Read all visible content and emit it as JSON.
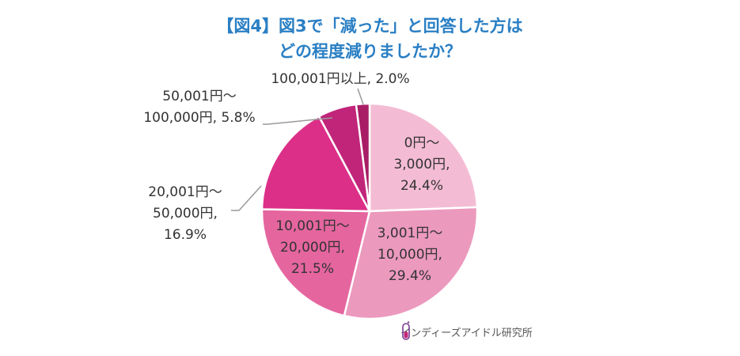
{
  "title_line1": "【図4】図3で「減った」と回答した方は",
  "title_line2": "どの程度減りましたか？",
  "brand": {
    "name": "インディーズアイドル研究所",
    "icon": "test-tube-icon"
  },
  "chart_data": {
    "type": "pie",
    "title": "【図4】図3で「減った」と回答した方は どの程度減りましたか？",
    "labels": [
      "0円～3,000円",
      "3,001円～10,000円",
      "10,001円～20,000円",
      "20,001円～50,000円",
      "50,001円～100,000円",
      "100,001円以上"
    ],
    "values": [
      24.4,
      29.4,
      21.5,
      16.9,
      5.8,
      2.0
    ],
    "unit": "%",
    "colors": [
      "#f4bcd4",
      "#ec99be",
      "#e5659f",
      "#dc2f88",
      "#c1257a",
      "#a81d66"
    ],
    "start": "12 o'clock",
    "direction": "clockwise",
    "label_lines": [
      [
        "0円～",
        "3,000円,",
        "24.4%"
      ],
      [
        "3,001円～",
        "10,000円,",
        "29.4%"
      ],
      [
        "10,001円～",
        "20,000円,",
        "21.5%"
      ],
      [
        "20,001円～",
        "50,000円,",
        "16.9%"
      ],
      [
        "50,001円～",
        "100,000円, 5.8%"
      ],
      [
        "100,001円以上, 2.0%"
      ]
    ]
  }
}
